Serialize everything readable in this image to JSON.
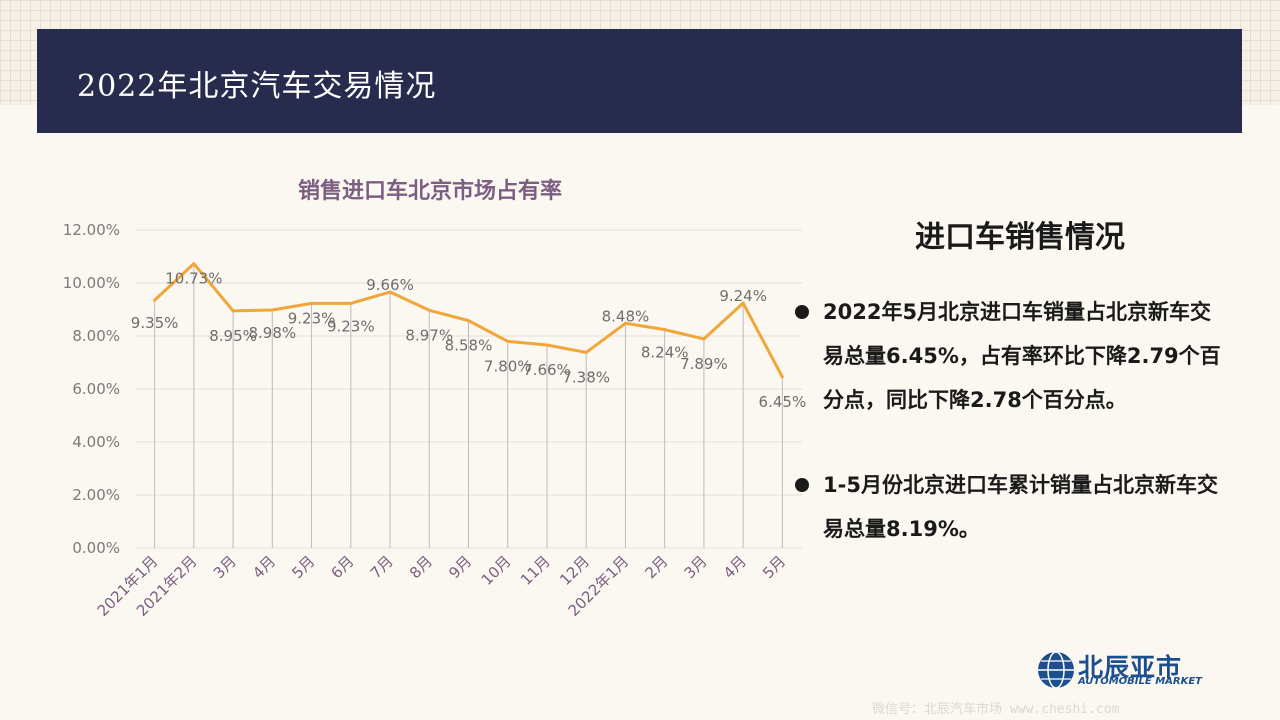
{
  "header": {
    "title": "2022年北京汽车交易情况"
  },
  "chart_data": {
    "type": "line",
    "title": "销售进口车北京市场占有率",
    "categories": [
      "2021年1月",
      "2021年2月",
      "3月",
      "4月",
      "5月",
      "6月",
      "7月",
      "8月",
      "9月",
      "10月",
      "11月",
      "12月",
      "2022年1月",
      "2月",
      "3月",
      "4月",
      "5月"
    ],
    "series": [
      {
        "values": [
          9.35,
          10.73,
          8.95,
          8.98,
          9.23,
          9.23,
          9.66,
          8.97,
          8.58,
          7.8,
          7.66,
          7.38,
          8.48,
          8.24,
          7.89,
          9.24,
          6.45
        ]
      }
    ],
    "data_labels": [
      "9.35%",
      "10.73%",
      "8.95%",
      "8.98%",
      "9.23%",
      "9.23%",
      "9.66%",
      "8.97%",
      "8.58%",
      "7.80%",
      "7.66%",
      "7.38%",
      "8.48%",
      "8.24%",
      "7.89%",
      "9.24%",
      "6.45%"
    ],
    "y_ticks": [
      "0.00%",
      "2.00%",
      "4.00%",
      "6.00%",
      "8.00%",
      "10.00%",
      "12.00%"
    ],
    "ylim": [
      0,
      12
    ],
    "grid": true,
    "legend": "none",
    "colors": {
      "line": "#f0a63a",
      "drop": "#c4b6c6",
      "grid": "#e3e0dc",
      "tick_text": "#7a7a7a",
      "cat_text": "#7c5e82"
    }
  },
  "side": {
    "title": "进口车销售情况",
    "bullets": [
      "2022年5月北京进口车销量占北京新车交易总量6.45%，占有率环比下降2.79个百分点，同比下降2.78个百分点。",
      "1-5月份北京进口车累计销量占北京新车交易总量8.19%。"
    ]
  },
  "logo": {
    "cn": "北辰亚市",
    "en": "AUTOMOBILE MARKET"
  },
  "watermark": "微信号：北辰汽车市场  www.cheshi.com"
}
